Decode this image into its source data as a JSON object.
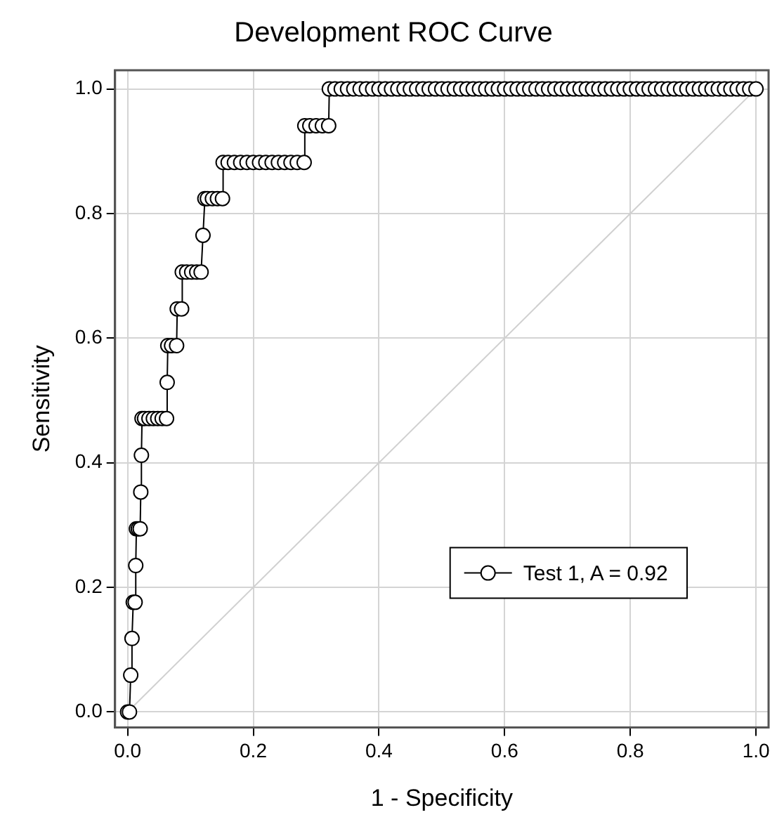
{
  "chart_data": {
    "type": "line",
    "title": "Development ROC Curve",
    "xlabel": "1 - Specificity",
    "ylabel": "Sensitivity",
    "xlim": [
      -0.02,
      1.02
    ],
    "ylim": [
      -0.025,
      1.03
    ],
    "xticks": [
      {
        "value": 0,
        "label": "0.0"
      },
      {
        "value": 0.2,
        "label": "0.2"
      },
      {
        "value": 0.4,
        "label": "0.4"
      },
      {
        "value": 0.6,
        "label": "0.6"
      },
      {
        "value": 0.8,
        "label": "0.8"
      },
      {
        "value": 1,
        "label": "1.0"
      }
    ],
    "yticks": [
      {
        "value": 0,
        "label": "0.0"
      },
      {
        "value": 0.2,
        "label": "0.2"
      },
      {
        "value": 0.4,
        "label": "0.4"
      },
      {
        "value": 0.6,
        "label": "0.6"
      },
      {
        "value": 0.8,
        "label": "0.8"
      },
      {
        "value": 1,
        "label": "1.0"
      }
    ],
    "grid": true,
    "legend": "bottom right",
    "line_style": "solid",
    "series": [
      {
        "name": "Test 1, A = 0.92",
        "color": "#000000",
        "marker": "circle",
        "x": [
          0,
          0.003,
          0.005,
          0.007,
          0.009,
          0.012,
          0.013,
          0.014,
          0.017,
          0.02,
          0.021,
          0.022,
          0.023,
          0.027,
          0.034,
          0.041,
          0.048,
          0.055,
          0.062,
          0.063,
          0.064,
          0.07,
          0.078,
          0.079,
          0.086,
          0.087,
          0.094,
          0.102,
          0.11,
          0.117,
          0.12,
          0.123,
          0.127,
          0.135,
          0.143,
          0.151,
          0.152,
          0.16,
          0.17,
          0.18,
          0.19,
          0.2,
          0.21,
          0.22,
          0.23,
          0.24,
          0.25,
          0.26,
          0.27,
          0.281,
          0.282,
          0.29,
          0.3,
          0.31,
          0.32,
          0.321,
          0.33,
          0.34,
          0.35,
          0.36,
          0.37,
          0.38,
          0.39,
          0.4,
          0.41,
          0.42,
          0.43,
          0.44,
          0.45,
          0.46,
          0.47,
          0.48,
          0.49,
          0.5,
          0.51,
          0.52,
          0.53,
          0.54,
          0.55,
          0.56,
          0.57,
          0.58,
          0.59,
          0.6,
          0.61,
          0.62,
          0.63,
          0.64,
          0.65,
          0.66,
          0.67,
          0.68,
          0.69,
          0.7,
          0.71,
          0.72,
          0.73,
          0.74,
          0.75,
          0.76,
          0.77,
          0.78,
          0.79,
          0.8,
          0.81,
          0.82,
          0.83,
          0.84,
          0.85,
          0.86,
          0.87,
          0.88,
          0.89,
          0.9,
          0.91,
          0.92,
          0.93,
          0.94,
          0.95,
          0.96,
          0.97,
          0.98,
          0.99,
          1
        ],
        "values": [
          0,
          0,
          0.059,
          0.118,
          0.176,
          0.176,
          0.235,
          0.294,
          0.294,
          0.294,
          0.353,
          0.412,
          0.471,
          0.471,
          0.471,
          0.471,
          0.471,
          0.471,
          0.471,
          0.529,
          0.588,
          0.588,
          0.588,
          0.647,
          0.647,
          0.706,
          0.706,
          0.706,
          0.706,
          0.706,
          0.765,
          0.824,
          0.824,
          0.824,
          0.824,
          0.824,
          0.882,
          0.882,
          0.882,
          0.882,
          0.882,
          0.882,
          0.882,
          0.882,
          0.882,
          0.882,
          0.882,
          0.882,
          0.882,
          0.882,
          0.941,
          0.941,
          0.941,
          0.941,
          0.941,
          1,
          1,
          1,
          1,
          1,
          1,
          1,
          1,
          1,
          1,
          1,
          1,
          1,
          1,
          1,
          1,
          1,
          1,
          1,
          1,
          1,
          1,
          1,
          1,
          1,
          1,
          1,
          1,
          1,
          1,
          1,
          1,
          1,
          1,
          1,
          1,
          1,
          1,
          1,
          1,
          1,
          1,
          1,
          1,
          1,
          1,
          1,
          1,
          1,
          1,
          1,
          1,
          1,
          1,
          1,
          1,
          1,
          1,
          1,
          1,
          1,
          1,
          1,
          1,
          1,
          1,
          1,
          1,
          1
        ]
      },
      {
        "color": "#d0d0d0",
        "marker": "none",
        "x": [
          0,
          1
        ],
        "values": [
          0,
          1
        ]
      }
    ]
  }
}
